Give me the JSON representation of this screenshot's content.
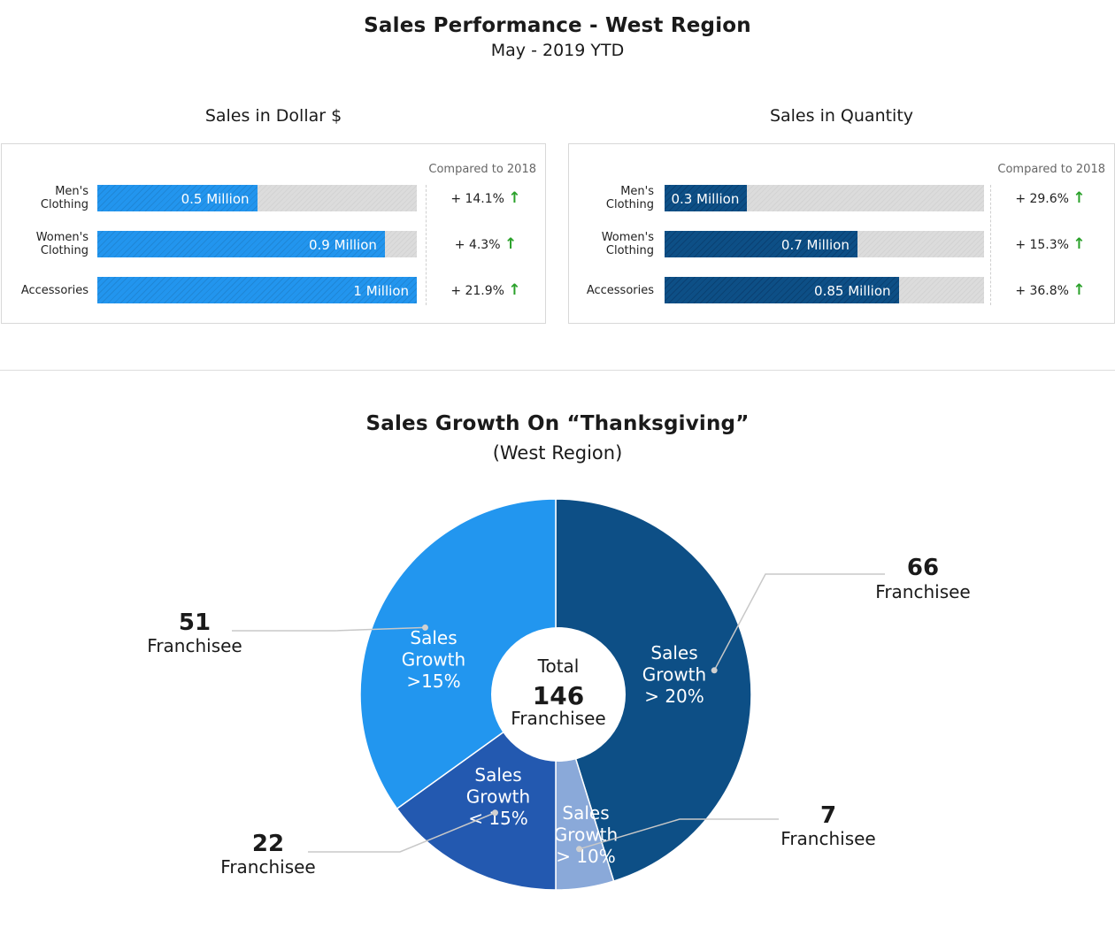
{
  "header": {
    "title": "Sales Performance - West Region",
    "subtitle": "May - 2019 YTD"
  },
  "compared_label": "Compared to 2018",
  "colors": {
    "light_bar": "#2295ee",
    "dark_bar": "#0d4f86",
    "track": "#dcdcdc",
    "up_arrow": "#2aa12a"
  },
  "chart_data": [
    {
      "type": "bar",
      "title": "Sales in Dollar $",
      "orientation": "horizontal",
      "categories": [
        "Men's Clothing",
        "Women's Clothing",
        "Accessories"
      ],
      "category_lines": [
        [
          "Men's",
          "Clothing"
        ],
        [
          "Women's",
          "Clothing"
        ],
        [
          "Accessories"
        ]
      ],
      "values": [
        0.5,
        0.9,
        1.0
      ],
      "max": 1.0,
      "labels": [
        "0.5 Million",
        "0.9 Million",
        "1 Million"
      ],
      "changes": [
        "+ 14.1%",
        "+ 4.3%",
        "+ 21.9%"
      ],
      "change_direction": [
        "up",
        "up",
        "up"
      ]
    },
    {
      "type": "bar",
      "title": "Sales in Quantity",
      "orientation": "horizontal",
      "categories": [
        "Men's Clothing",
        "Women's Clothing",
        "Accessories"
      ],
      "category_lines": [
        [
          "Men's",
          "Clothing"
        ],
        [
          "Women's",
          "Clothing"
        ],
        [
          "Accessories"
        ]
      ],
      "values": [
        0.3,
        0.7,
        0.85
      ],
      "max": 1.16,
      "labels": [
        "0.3 Million",
        "0.7 Million",
        "0.85 Million"
      ],
      "changes": [
        "+ 29.6%",
        "+ 15.3%",
        "+ 36.8%"
      ],
      "change_direction": [
        "up",
        "up",
        "up"
      ]
    },
    {
      "type": "pie",
      "title": "Sales Growth On “Thanksgiving”",
      "subtitle": "(West Region)",
      "center": {
        "top": "Total",
        "value": "146",
        "bottom": "Franchisee"
      },
      "slices": [
        {
          "label": [
            "Sales",
            "Growth",
            "> 20%"
          ],
          "value": 66,
          "unit": "Franchisee",
          "color": "#0d4f86"
        },
        {
          "label": [
            "Sales",
            "Growth",
            "> 10%"
          ],
          "value": 7,
          "unit": "Franchisee",
          "color": "#8aa9d9"
        },
        {
          "label": [
            "Sales",
            "Growth",
            "< 15%"
          ],
          "value": 22,
          "unit": "Franchisee",
          "color": "#2359b0"
        },
        {
          "label": [
            "Sales",
            "Growth",
            ">15%"
          ],
          "value": 51,
          "unit": "Franchisee",
          "color": "#2296ef"
        }
      ]
    }
  ]
}
